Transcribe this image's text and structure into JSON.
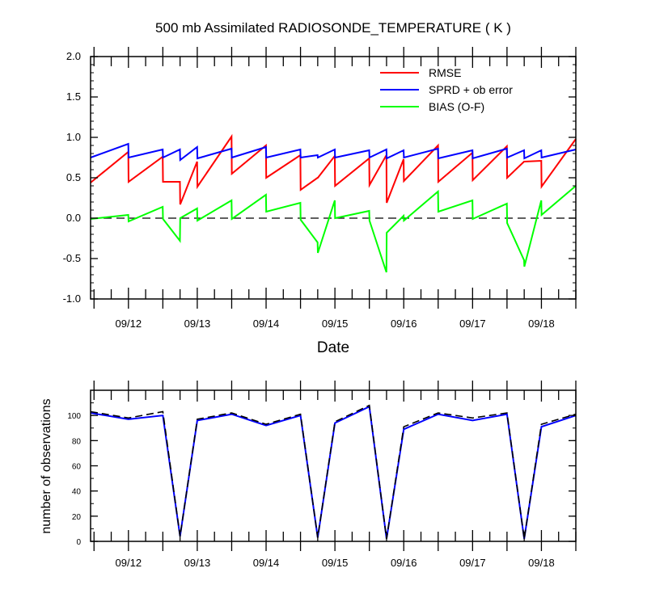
{
  "chart_data": [
    {
      "type": "line",
      "title": "500 mb Assimilated RADIOSONDE_TEMPERATURE ( K )",
      "xlabel": "Date",
      "ylabel": "",
      "xlim": [
        11.45,
        18.5
      ],
      "ylim": [
        -1.0,
        2.0
      ],
      "y_ticks": [
        "-1.0",
        "-0.5",
        "0.0",
        "0.5",
        "1.0",
        "1.5",
        "2.0"
      ],
      "y_tick_values": [
        -1.0,
        -0.5,
        0.0,
        0.5,
        1.0,
        1.5,
        2.0
      ],
      "x_ticks": [
        "09/12",
        "09/13",
        "09/14",
        "09/15",
        "09/16",
        "09/17",
        "09/18"
      ],
      "x_tick_values": [
        12,
        13,
        14,
        15,
        16,
        17,
        18
      ],
      "zero_line": "dashed",
      "legend": {
        "placement": "top-right"
      },
      "series": [
        {
          "name": "RMSE",
          "color": "#ff0000",
          "points": [
            [
              11.45,
              0.44
            ],
            [
              11.998,
              0.82
            ],
            [
              12.002,
              0.45
            ],
            [
              12.498,
              0.76
            ],
            [
              12.502,
              0.45
            ],
            [
              12.748,
              0.45
            ],
            [
              12.752,
              0.17
            ],
            [
              12.998,
              0.7
            ],
            [
              13.002,
              0.39
            ],
            [
              13.498,
              1.01
            ],
            [
              13.502,
              0.55
            ],
            [
              13.998,
              0.9
            ],
            [
              14.002,
              0.5
            ],
            [
              14.498,
              0.78
            ],
            [
              14.502,
              0.35
            ],
            [
              14.748,
              0.5
            ],
            [
              14.752,
              0.5
            ],
            [
              14.998,
              0.77
            ],
            [
              15.002,
              0.4
            ],
            [
              15.498,
              0.74
            ],
            [
              15.502,
              0.41
            ],
            [
              15.748,
              0.78
            ],
            [
              15.752,
              0.19
            ],
            [
              15.998,
              0.73
            ],
            [
              16.002,
              0.46
            ],
            [
              16.498,
              0.9
            ],
            [
              16.502,
              0.45
            ],
            [
              16.998,
              0.81
            ],
            [
              17.002,
              0.47
            ],
            [
              17.498,
              0.89
            ],
            [
              17.502,
              0.5
            ],
            [
              17.748,
              0.7
            ],
            [
              17.752,
              0.7
            ],
            [
              17.998,
              0.71
            ],
            [
              18.002,
              0.39
            ],
            [
              18.5,
              0.98
            ]
          ]
        },
        {
          "name": "SPRD + ob error",
          "color": "#0000ff",
          "points": [
            [
              11.45,
              0.75
            ],
            [
              11.998,
              0.92
            ],
            [
              12.002,
              0.75
            ],
            [
              12.498,
              0.85
            ],
            [
              12.502,
              0.75
            ],
            [
              12.748,
              0.85
            ],
            [
              12.752,
              0.72
            ],
            [
              12.998,
              0.88
            ],
            [
              13.002,
              0.74
            ],
            [
              13.498,
              0.86
            ],
            [
              13.502,
              0.75
            ],
            [
              13.998,
              0.88
            ],
            [
              14.002,
              0.75
            ],
            [
              14.498,
              0.85
            ],
            [
              14.502,
              0.75
            ],
            [
              14.748,
              0.78
            ],
            [
              14.752,
              0.75
            ],
            [
              14.998,
              0.85
            ],
            [
              15.002,
              0.75
            ],
            [
              15.498,
              0.84
            ],
            [
              15.502,
              0.75
            ],
            [
              15.748,
              0.85
            ],
            [
              15.752,
              0.74
            ],
            [
              15.998,
              0.84
            ],
            [
              16.002,
              0.75
            ],
            [
              16.498,
              0.86
            ],
            [
              16.502,
              0.74
            ],
            [
              16.998,
              0.84
            ],
            [
              17.002,
              0.74
            ],
            [
              17.498,
              0.86
            ],
            [
              17.502,
              0.75
            ],
            [
              17.748,
              0.84
            ],
            [
              17.752,
              0.74
            ],
            [
              17.998,
              0.84
            ],
            [
              18.002,
              0.75
            ],
            [
              18.5,
              0.85
            ]
          ]
        },
        {
          "name": "BIAS (O-F)",
          "color": "#00ff00",
          "points": [
            [
              11.45,
              -0.01
            ],
            [
              11.998,
              0.04
            ],
            [
              12.002,
              -0.04
            ],
            [
              12.498,
              0.14
            ],
            [
              12.502,
              -0.01
            ],
            [
              12.748,
              -0.28
            ],
            [
              12.752,
              0.0
            ],
            [
              12.998,
              0.12
            ],
            [
              13.002,
              -0.03
            ],
            [
              13.498,
              0.22
            ],
            [
              13.502,
              -0.01
            ],
            [
              13.998,
              0.29
            ],
            [
              14.002,
              0.08
            ],
            [
              14.498,
              0.19
            ],
            [
              14.502,
              -0.02
            ],
            [
              14.748,
              -0.3
            ],
            [
              14.752,
              -0.43
            ],
            [
              14.998,
              0.22
            ],
            [
              15.002,
              0.0
            ],
            [
              15.498,
              0.09
            ],
            [
              15.502,
              -0.03
            ],
            [
              15.748,
              -0.67
            ],
            [
              15.752,
              -0.18
            ],
            [
              15.998,
              0.03
            ],
            [
              16.002,
              -0.03
            ],
            [
              16.498,
              0.33
            ],
            [
              16.502,
              0.08
            ],
            [
              16.998,
              0.22
            ],
            [
              17.002,
              -0.01
            ],
            [
              17.498,
              0.18
            ],
            [
              17.502,
              -0.06
            ],
            [
              17.748,
              -0.52
            ],
            [
              17.752,
              -0.6
            ],
            [
              17.998,
              0.22
            ],
            [
              18.002,
              0.04
            ],
            [
              18.5,
              0.4
            ]
          ]
        }
      ]
    },
    {
      "type": "line",
      "title": "",
      "xlabel": "",
      "ylabel": "number of observations",
      "xlim": [
        11.45,
        18.5
      ],
      "ylim": [
        0,
        120
      ],
      "y_ticks": [
        "0",
        "20",
        "40",
        "60",
        "80",
        "100"
      ],
      "y_tick_values": [
        0,
        20,
        40,
        60,
        80,
        100
      ],
      "x_ticks": [
        "09/12",
        "09/13",
        "09/14",
        "09/15",
        "09/16",
        "09/17",
        "09/18"
      ],
      "x_tick_values": [
        12,
        13,
        14,
        15,
        16,
        17,
        18
      ],
      "series": [
        {
          "style": "solid",
          "color": "#0000ff",
          "points": [
            [
              11.45,
              102
            ],
            [
              12.0,
              97
            ],
            [
              12.5,
              100
            ],
            [
              12.75,
              4
            ],
            [
              13.0,
              96
            ],
            [
              13.5,
              101
            ],
            [
              14.0,
              92
            ],
            [
              14.5,
              100
            ],
            [
              14.75,
              3
            ],
            [
              15.0,
              94
            ],
            [
              15.5,
              107
            ],
            [
              15.75,
              2
            ],
            [
              16.0,
              89
            ],
            [
              16.5,
              101
            ],
            [
              17.0,
              96
            ],
            [
              17.5,
              101
            ],
            [
              17.75,
              2
            ],
            [
              18.0,
              91
            ],
            [
              18.5,
              100
            ]
          ]
        },
        {
          "style": "dashed",
          "color": "#000000",
          "points": [
            [
              11.45,
              103
            ],
            [
              12.0,
              98
            ],
            [
              12.5,
              103
            ],
            [
              12.75,
              4
            ],
            [
              13.0,
              97
            ],
            [
              13.5,
              102
            ],
            [
              14.0,
              93
            ],
            [
              14.5,
              101
            ],
            [
              14.75,
              3
            ],
            [
              15.0,
              95
            ],
            [
              15.5,
              108
            ],
            [
              15.75,
              2
            ],
            [
              16.0,
              91
            ],
            [
              16.5,
              102
            ],
            [
              17.0,
              98
            ],
            [
              17.5,
              102
            ],
            [
              17.75,
              2
            ],
            [
              18.0,
              93
            ],
            [
              18.5,
              101
            ]
          ]
        }
      ]
    }
  ]
}
